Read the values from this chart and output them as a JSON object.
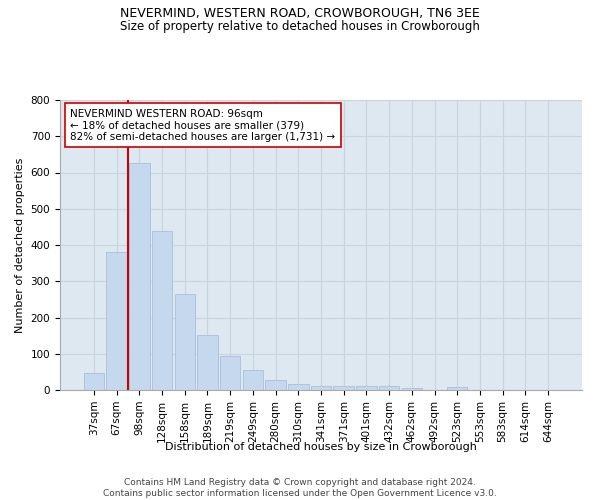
{
  "title": "NEVERMIND, WESTERN ROAD, CROWBOROUGH, TN6 3EE",
  "subtitle": "Size of property relative to detached houses in Crowborough",
  "xlabel": "Distribution of detached houses by size in Crowborough",
  "ylabel": "Number of detached properties",
  "bar_labels": [
    "37sqm",
    "67sqm",
    "98sqm",
    "128sqm",
    "158sqm",
    "189sqm",
    "219sqm",
    "249sqm",
    "280sqm",
    "310sqm",
    "341sqm",
    "371sqm",
    "401sqm",
    "432sqm",
    "462sqm",
    "492sqm",
    "523sqm",
    "553sqm",
    "583sqm",
    "614sqm",
    "644sqm"
  ],
  "bar_values": [
    48,
    380,
    625,
    438,
    265,
    153,
    95,
    55,
    28,
    16,
    11,
    11,
    11,
    10,
    5,
    0,
    8,
    0,
    0,
    0,
    0
  ],
  "bar_color": "#c5d8ed",
  "bar_edge_color": "#a0b8d8",
  "grid_color": "#c8d4e0",
  "background_color": "#dde8f0",
  "vline_color": "#cc0000",
  "vline_x": 1.5,
  "annotation_text": "NEVERMIND WESTERN ROAD: 96sqm\n← 18% of detached houses are smaller (379)\n82% of semi-detached houses are larger (1,731) →",
  "annotation_box_color": "#ffffff",
  "annotation_box_edge": "#cc0000",
  "footer_text": "Contains HM Land Registry data © Crown copyright and database right 2024.\nContains public sector information licensed under the Open Government Licence v3.0.",
  "ylim": [
    0,
    800
  ],
  "yticks": [
    0,
    100,
    200,
    300,
    400,
    500,
    600,
    700,
    800
  ],
  "title_fontsize": 9,
  "subtitle_fontsize": 8.5,
  "axis_label_fontsize": 8,
  "tick_fontsize": 7.5
}
